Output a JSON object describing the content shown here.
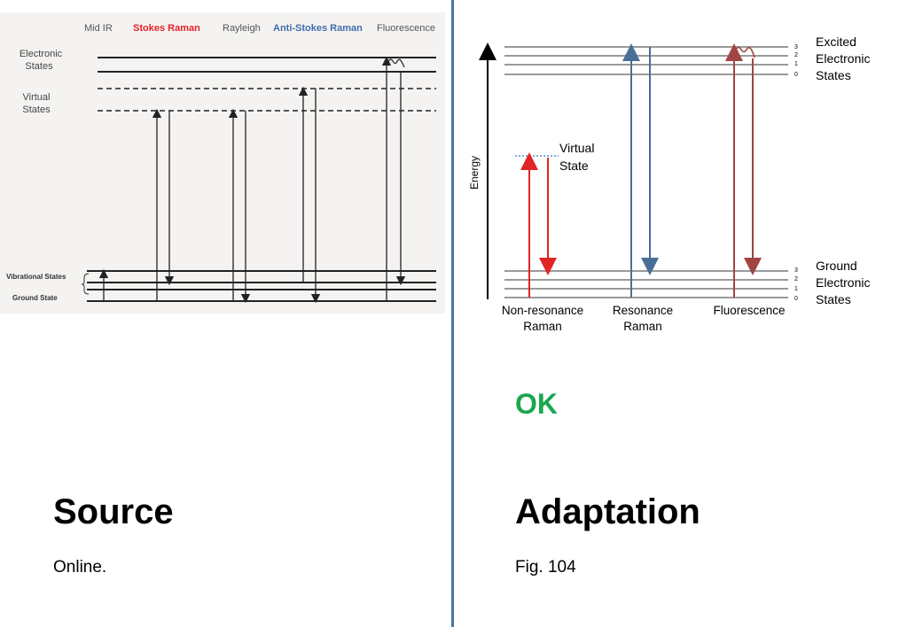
{
  "source_diagram": {
    "columns": [
      "Mid IR",
      "Stokes Raman",
      "Rayleigh",
      "Anti-Stokes Raman",
      "Fluorescence"
    ],
    "labels": {
      "electronic": [
        "Electronic",
        "States"
      ],
      "virtual": [
        "Virtual",
        "States"
      ],
      "vibrational": "Vibrational States",
      "ground": "Ground State"
    },
    "colors": {
      "stokes": "#e8202a",
      "anti_stokes": "#3e6db0",
      "default": "#555555",
      "line": "#222222"
    }
  },
  "adaptation_diagram": {
    "energy_label": "Energy",
    "virtual_label": [
      "Virtual",
      "State"
    ],
    "excited_label": [
      "Excited",
      "Electronic",
      "States"
    ],
    "ground_label": [
      "Ground",
      "Electronic",
      "States"
    ],
    "level_numbers": [
      "3",
      "2",
      "1",
      "0"
    ],
    "processes": [
      {
        "line1": "Non-resonance",
        "line2": "Raman"
      },
      {
        "line1": "Resonance",
        "line2": "Raman"
      },
      {
        "line1": "Fluorescence",
        "line2": ""
      }
    ],
    "colors": {
      "red": "#e12424",
      "blue": "#4a6f96",
      "brown": "#a14444",
      "grey_line": "#9a9a9a",
      "dotted": "#5b8fc9"
    }
  },
  "status": "OK",
  "source_title": "Source",
  "source_note": "Online.",
  "adaptation_title": "Adaptation",
  "adaptation_note": "Fig. 104"
}
